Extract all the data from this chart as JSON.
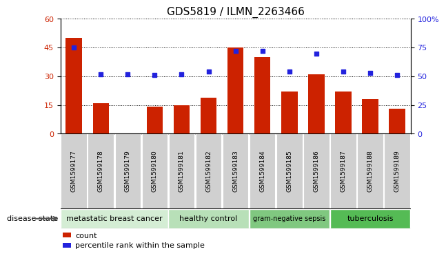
{
  "title": "GDS5819 / ILMN_2263466",
  "samples": [
    "GSM1599177",
    "GSM1599178",
    "GSM1599179",
    "GSM1599180",
    "GSM1599181",
    "GSM1599182",
    "GSM1599183",
    "GSM1599184",
    "GSM1599185",
    "GSM1599186",
    "GSM1599187",
    "GSM1599188",
    "GSM1599189"
  ],
  "counts": [
    50,
    16,
    0,
    14,
    15,
    19,
    45,
    40,
    22,
    31,
    22,
    18,
    13
  ],
  "percentiles": [
    75,
    52,
    52,
    51,
    52,
    54,
    72,
    72,
    54,
    70,
    54,
    53,
    51
  ],
  "ylim_left": [
    0,
    60
  ],
  "ylim_right": [
    0,
    100
  ],
  "yticks_left": [
    0,
    15,
    30,
    45,
    60
  ],
  "yticks_right": [
    0,
    25,
    50,
    75,
    100
  ],
  "bar_color": "#CC2200",
  "dot_color": "#2222dd",
  "bg_color": "#ffffff",
  "groups": [
    {
      "label": "metastatic breast cancer",
      "start": 0,
      "end": 4,
      "color": "#d4edd4"
    },
    {
      "label": "healthy control",
      "start": 4,
      "end": 7,
      "color": "#b8e0b8"
    },
    {
      "label": "gram-negative sepsis",
      "start": 7,
      "end": 10,
      "color": "#80c880"
    },
    {
      "label": "tuberculosis",
      "start": 10,
      "end": 13,
      "color": "#55bb55"
    }
  ],
  "disease_state_label": "disease state",
  "legend_count": "count",
  "legend_percentile": "percentile rank within the sample",
  "title_fontsize": 11,
  "label_fontsize": 6.5,
  "tick_fontsize": 8,
  "gray_cell": "#d0d0d0"
}
